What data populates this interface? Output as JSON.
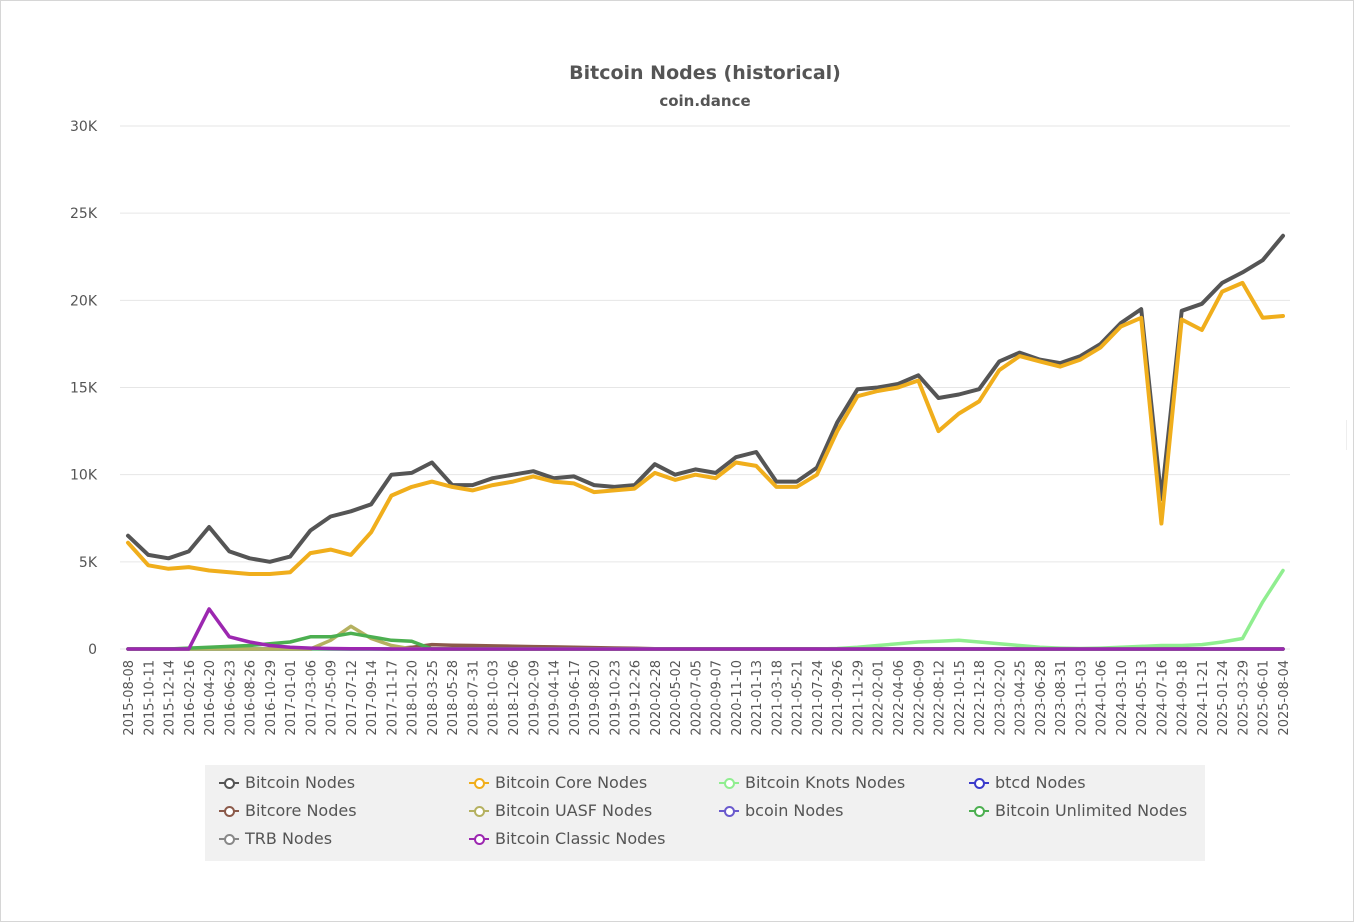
{
  "chart_data": {
    "type": "line",
    "title": "Bitcoin Nodes (historical)",
    "subtitle": "coin.dance",
    "xlabel": "",
    "ylabel": "",
    "ylim": [
      0,
      30000
    ],
    "y_ticks": [
      "0",
      "5K",
      "10K",
      "15K",
      "20K",
      "25K",
      "30K"
    ],
    "y_tick_values": [
      0,
      5000,
      10000,
      15000,
      20000,
      25000,
      30000
    ],
    "grid": true,
    "legend_position": "bottom",
    "x": [
      "2015-08-08",
      "2015-10-11",
      "2015-12-14",
      "2016-02-16",
      "2016-04-20",
      "2016-06-23",
      "2016-08-26",
      "2016-10-29",
      "2017-01-01",
      "2017-03-06",
      "2017-05-09",
      "2017-07-12",
      "2017-09-14",
      "2017-11-17",
      "2018-01-20",
      "2018-03-25",
      "2018-05-28",
      "2018-07-31",
      "2018-10-03",
      "2018-12-06",
      "2019-02-09",
      "2019-04-14",
      "2019-06-17",
      "2019-08-20",
      "2019-10-23",
      "2019-12-26",
      "2020-02-28",
      "2020-05-02",
      "2020-07-05",
      "2020-09-07",
      "2020-11-10",
      "2021-01-13",
      "2021-03-18",
      "2021-05-21",
      "2021-07-24",
      "2021-09-26",
      "2021-11-29",
      "2022-02-01",
      "2022-04-06",
      "2022-06-09",
      "2022-08-12",
      "2022-10-15",
      "2022-12-18",
      "2023-02-20",
      "2023-04-25",
      "2023-06-28",
      "2023-08-31",
      "2023-11-03",
      "2024-01-06",
      "2024-03-10",
      "2024-05-13",
      "2024-07-16",
      "2024-09-18",
      "2024-11-21",
      "2025-01-24",
      "2025-03-29",
      "2025-06-01",
      "2025-08-04"
    ],
    "series": [
      {
        "name": "Bitcoin Nodes",
        "color": "#555555",
        "values": [
          6500,
          5400,
          5200,
          5600,
          7000,
          5600,
          5200,
          5000,
          5300,
          6800,
          7600,
          7900,
          8300,
          10000,
          10100,
          10700,
          9400,
          9400,
          9800,
          10000,
          10200,
          9800,
          9900,
          9400,
          9300,
          9400,
          10600,
          10000,
          10300,
          10100,
          11000,
          11300,
          9600,
          9600,
          10400,
          13000,
          14900,
          15000,
          15200,
          15700,
          14400,
          14600,
          14900,
          16500,
          17000,
          16600,
          16400,
          16800,
          17500,
          18700,
          19500,
          8600,
          19400,
          19800,
          21000,
          21600,
          22300,
          23700
        ]
      },
      {
        "name": "Bitcoin Core Nodes",
        "color": "#f0ae1c",
        "values": [
          6100,
          4800,
          4600,
          4700,
          4500,
          4400,
          4300,
          4300,
          4400,
          5500,
          5700,
          5400,
          6700,
          8800,
          9300,
          9600,
          9300,
          9100,
          9400,
          9600,
          9900,
          9600,
          9500,
          9000,
          9100,
          9200,
          10100,
          9700,
          10000,
          9800,
          10700,
          10500,
          9300,
          9300,
          10000,
          12500,
          14500,
          14800,
          15000,
          15400,
          12500,
          13500,
          14200,
          16000,
          16800,
          16500,
          16200,
          16600,
          17300,
          18500,
          19000,
          7200,
          18900,
          18300,
          20500,
          21000,
          19000,
          19100
        ]
      },
      {
        "name": "Bitcoin Knots Nodes",
        "color": "#90ee90",
        "values": [
          0,
          0,
          0,
          0,
          0,
          0,
          0,
          0,
          0,
          0,
          0,
          0,
          0,
          0,
          0,
          0,
          0,
          0,
          0,
          0,
          0,
          0,
          0,
          0,
          0,
          0,
          0,
          0,
          0,
          0,
          0,
          0,
          0,
          0,
          0,
          30,
          100,
          200,
          300,
          400,
          450,
          500,
          400,
          300,
          200,
          100,
          50,
          30,
          50,
          100,
          150,
          200,
          200,
          250,
          400,
          600,
          2700,
          4500
        ]
      },
      {
        "name": "btcd Nodes",
        "color": "#3b3bcb",
        "values": [
          0,
          0,
          0,
          0,
          0,
          0,
          0,
          0,
          0,
          0,
          0,
          0,
          0,
          0,
          0,
          0,
          0,
          0,
          0,
          0,
          0,
          0,
          0,
          0,
          0,
          0,
          0,
          0,
          0,
          0,
          0,
          0,
          0,
          0,
          0,
          0,
          0,
          0,
          0,
          0,
          0,
          0,
          0,
          0,
          0,
          0,
          0,
          0,
          0,
          0,
          0,
          0,
          0,
          0,
          0,
          0,
          0,
          0
        ]
      },
      {
        "name": "Bitcore Nodes",
        "color": "#8b5a4a",
        "values": [
          0,
          0,
          0,
          0,
          0,
          0,
          0,
          0,
          0,
          0,
          0,
          0,
          0,
          0,
          100,
          250,
          220,
          200,
          180,
          160,
          140,
          120,
          100,
          80,
          60,
          40,
          20,
          10,
          0,
          0,
          0,
          0,
          0,
          0,
          0,
          0,
          0,
          0,
          0,
          0,
          0,
          0,
          0,
          0,
          0,
          0,
          0,
          0,
          0,
          0,
          0,
          0,
          0,
          0,
          0,
          0,
          0,
          0
        ]
      },
      {
        "name": "Bitcoin UASF Nodes",
        "color": "#b5b160",
        "values": [
          0,
          0,
          0,
          0,
          0,
          0,
          0,
          0,
          0,
          0,
          500,
          1300,
          600,
          200,
          0,
          0,
          0,
          0,
          0,
          0,
          0,
          0,
          0,
          0,
          0,
          0,
          0,
          0,
          0,
          0,
          0,
          0,
          0,
          0,
          0,
          0,
          0,
          0,
          0,
          0,
          0,
          0,
          0,
          0,
          0,
          0,
          0,
          0,
          0,
          0,
          0,
          0,
          0,
          0,
          0,
          0,
          0,
          0
        ]
      },
      {
        "name": "bcoin Nodes",
        "color": "#6a5acd",
        "values": [
          0,
          0,
          0,
          0,
          0,
          0,
          0,
          0,
          0,
          0,
          0,
          0,
          0,
          0,
          0,
          0,
          0,
          0,
          0,
          0,
          0,
          0,
          0,
          0,
          0,
          0,
          0,
          0,
          0,
          0,
          0,
          0,
          0,
          0,
          0,
          0,
          0,
          0,
          0,
          0,
          0,
          0,
          0,
          0,
          0,
          0,
          0,
          0,
          0,
          0,
          0,
          0,
          0,
          0,
          0,
          0,
          0,
          0
        ]
      },
      {
        "name": "Bitcoin Unlimited Nodes",
        "color": "#4caf50",
        "values": [
          0,
          0,
          0,
          50,
          100,
          150,
          200,
          300,
          400,
          700,
          700,
          900,
          700,
          500,
          450,
          0,
          0,
          0,
          0,
          0,
          0,
          0,
          0,
          0,
          0,
          0,
          0,
          0,
          0,
          0,
          0,
          0,
          0,
          0,
          0,
          0,
          0,
          0,
          0,
          0,
          0,
          0,
          0,
          0,
          0,
          0,
          0,
          0,
          0,
          0,
          0,
          0,
          0,
          0,
          0,
          0,
          0,
          0
        ]
      },
      {
        "name": "TRB Nodes",
        "color": "#888888",
        "values": [
          0,
          0,
          0,
          0,
          0,
          0,
          0,
          0,
          0,
          0,
          0,
          0,
          0,
          0,
          0,
          0,
          0,
          0,
          0,
          0,
          0,
          0,
          0,
          0,
          0,
          0,
          0,
          0,
          0,
          0,
          0,
          0,
          0,
          0,
          0,
          0,
          0,
          0,
          0,
          0,
          0,
          0,
          0,
          0,
          0,
          0,
          0,
          0,
          0,
          0,
          0,
          0,
          0,
          0,
          0,
          0,
          0,
          0
        ]
      },
      {
        "name": "Bitcoin Classic Nodes",
        "color": "#9c27b0",
        "values": [
          0,
          0,
          0,
          0,
          2300,
          700,
          400,
          200,
          100,
          50,
          30,
          20,
          10,
          0,
          0,
          0,
          0,
          0,
          0,
          0,
          0,
          0,
          0,
          0,
          0,
          0,
          0,
          0,
          0,
          0,
          0,
          0,
          0,
          0,
          0,
          0,
          0,
          0,
          0,
          0,
          0,
          0,
          0,
          0,
          0,
          0,
          0,
          0,
          0,
          0,
          0,
          0,
          0,
          0,
          0,
          0,
          0,
          0
        ]
      }
    ],
    "draw_order": [
      8,
      4,
      3,
      6,
      2,
      5,
      7,
      0,
      1,
      9
    ],
    "legend_order": [
      0,
      1,
      2,
      3,
      4,
      5,
      6,
      7,
      8,
      9
    ]
  }
}
